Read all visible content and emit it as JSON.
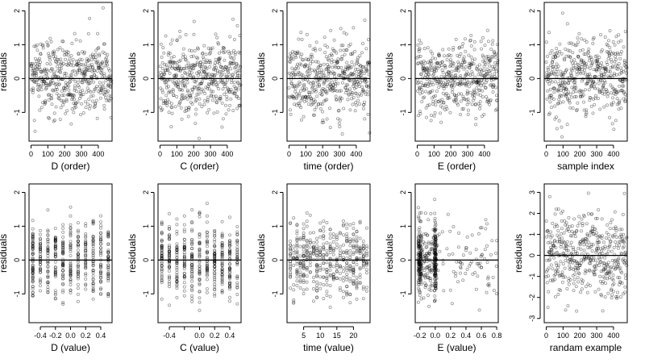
{
  "chart_data": [
    {
      "type": "scatter",
      "xlabel": "D (order)",
      "ylabel": "residuals",
      "xlim": [
        -12,
        482
      ],
      "ylim": [
        -1.85,
        2.25
      ],
      "xticks": [
        0,
        100,
        200,
        300,
        400
      ],
      "xtick_labels": [
        "0",
        "100",
        "200",
        "300",
        "400"
      ],
      "yticks": [
        -1,
        0,
        1,
        2
      ],
      "ytick_labels": [
        "-1",
        "0",
        "1",
        "2"
      ],
      "reference_line_y": 0,
      "n_points": 480,
      "x_pattern": "order",
      "point_seed": 11
    },
    {
      "type": "scatter",
      "xlabel": "C (order)",
      "ylabel": "residuals",
      "xlim": [
        -12,
        482
      ],
      "ylim": [
        -1.85,
        2.25
      ],
      "xticks": [
        0,
        100,
        200,
        300,
        400
      ],
      "xtick_labels": [
        "0",
        "100",
        "200",
        "300",
        "400"
      ],
      "yticks": [
        -1,
        0,
        1,
        2
      ],
      "ytick_labels": [
        "-1",
        "0",
        "1",
        "2"
      ],
      "reference_line_y": 0,
      "n_points": 480,
      "x_pattern": "order",
      "point_seed": 23
    },
    {
      "type": "scatter",
      "xlabel": "time (order)",
      "ylabel": "residuals",
      "xlim": [
        -12,
        482
      ],
      "ylim": [
        -1.85,
        2.25
      ],
      "xticks": [
        0,
        100,
        200,
        300,
        400
      ],
      "xtick_labels": [
        "0",
        "100",
        "200",
        "300",
        "400"
      ],
      "yticks": [
        -1,
        0,
        1,
        2
      ],
      "ytick_labels": [
        "-1",
        "0",
        "1",
        "2"
      ],
      "reference_line_y": 0,
      "n_points": 480,
      "x_pattern": "order",
      "point_seed": 37
    },
    {
      "type": "scatter",
      "xlabel": "E (order)",
      "ylabel": "residuals",
      "xlim": [
        -12,
        482
      ],
      "ylim": [
        -1.85,
        2.25
      ],
      "xticks": [
        0,
        100,
        200,
        300,
        400
      ],
      "xtick_labels": [
        "0",
        "100",
        "200",
        "300",
        "400"
      ],
      "yticks": [
        -1,
        0,
        1,
        2
      ],
      "ytick_labels": [
        "-1",
        "0",
        "1",
        "2"
      ],
      "reference_line_y": 0,
      "n_points": 480,
      "x_pattern": "order",
      "point_seed": 41
    },
    {
      "type": "scatter",
      "xlabel": "sample index",
      "ylabel": "residuals",
      "xlim": [
        -12,
        482
      ],
      "ylim": [
        -1.85,
        2.25
      ],
      "xticks": [
        0,
        100,
        200,
        300,
        400
      ],
      "xtick_labels": [
        "0",
        "100",
        "200",
        "300",
        "400"
      ],
      "yticks": [
        -1,
        0,
        1,
        2
      ],
      "ytick_labels": [
        "-1",
        "0",
        "1",
        "2"
      ],
      "reference_line_y": 0,
      "n_points": 480,
      "x_pattern": "order",
      "point_seed": 53
    },
    {
      "type": "scatter",
      "xlabel": "D (value)",
      "ylabel": "residuals",
      "xlim": [
        -0.55,
        0.55
      ],
      "ylim": [
        -1.85,
        2.25
      ],
      "xticks": [
        -0.4,
        -0.2,
        0,
        0.2,
        0.4
      ],
      "xtick_labels": [
        "-0.4",
        "-0.2",
        "0.0",
        "0.2",
        "0.4"
      ],
      "yticks": [
        -1,
        0,
        1,
        2
      ],
      "ytick_labels": [
        "-1",
        "0",
        "1",
        "2"
      ],
      "reference_line_y": 0,
      "n_points": 480,
      "x_pattern": "discrete",
      "x_levels": [
        -0.5,
        -0.4,
        -0.3,
        -0.2,
        -0.1,
        0,
        0.1,
        0.2,
        0.3,
        0.4,
        0.5
      ],
      "point_seed": 61
    },
    {
      "type": "scatter",
      "xlabel": "C (value)",
      "ylabel": "residuals",
      "xlim": [
        -0.55,
        0.55
      ],
      "ylim": [
        -1.85,
        2.25
      ],
      "xticks": [
        -0.4,
        -0.2,
        0,
        0.2,
        0.4
      ],
      "xtick_labels": [
        "-0.4",
        "",
        "0.0",
        "0.2",
        "0.4"
      ],
      "yticks": [
        -1,
        0,
        1,
        2
      ],
      "ytick_labels": [
        "-1",
        "0",
        "1",
        "2"
      ],
      "reference_line_y": 0,
      "n_points": 480,
      "x_pattern": "discrete",
      "x_levels": [
        -0.5,
        -0.4,
        -0.3,
        -0.2,
        -0.1,
        0,
        0.1,
        0.2,
        0.3,
        0.4,
        0.5
      ],
      "point_seed": 71
    },
    {
      "type": "scatter",
      "xlabel": "time (value)",
      "ylabel": "residuals",
      "xlim": [
        0,
        25
      ],
      "ylim": [
        -1.85,
        2.25
      ],
      "xticks": [
        5,
        10,
        15,
        20
      ],
      "xtick_labels": [
        "5",
        "10",
        "15",
        "20"
      ],
      "yticks": [
        -1,
        0,
        1,
        2
      ],
      "ytick_labels": [
        "-1",
        "0",
        "1",
        "2"
      ],
      "reference_line_y": 0,
      "n_points": 480,
      "x_pattern": "discrete",
      "x_levels": [
        1,
        2,
        3,
        4,
        5,
        6,
        7,
        8,
        9,
        10,
        11,
        12,
        13,
        14,
        15,
        16,
        17,
        18,
        19,
        20,
        21,
        22,
        23,
        24
      ],
      "point_seed": 83
    },
    {
      "type": "scatter",
      "xlabel": "E (value)",
      "ylabel": "residuals",
      "xlim": [
        -0.26,
        0.82
      ],
      "ylim": [
        -1.85,
        2.25
      ],
      "xticks": [
        -0.2,
        0,
        0.2,
        0.4,
        0.6,
        0.8
      ],
      "xtick_labels": [
        "-0.2",
        "0.0",
        "0.2",
        "0.4",
        "0.6",
        "0.8"
      ],
      "yticks": [
        -1,
        0,
        1,
        2
      ],
      "ytick_labels": [
        "-1",
        "0",
        "1",
        "2"
      ],
      "reference_line_y": 0,
      "n_points": 480,
      "x_pattern": "skewed",
      "point_seed": 97
    },
    {
      "type": "scatter",
      "xlabel": "randam example",
      "ylabel": "residuals",
      "xlim": [
        -12,
        482
      ],
      "ylim": [
        -3.2,
        3.4
      ],
      "xticks": [
        0,
        100,
        200,
        300,
        400
      ],
      "xtick_labels": [
        "0",
        "100",
        "200",
        "300",
        "400"
      ],
      "yticks": [
        -3,
        -2,
        -1,
        0,
        1,
        2,
        3
      ],
      "ytick_labels": [
        "-3",
        "-2",
        "-1",
        "0",
        "1",
        "2",
        "3"
      ],
      "reference_line_y": 0,
      "n_points": 480,
      "x_pattern": "order",
      "point_seed": 101
    }
  ]
}
